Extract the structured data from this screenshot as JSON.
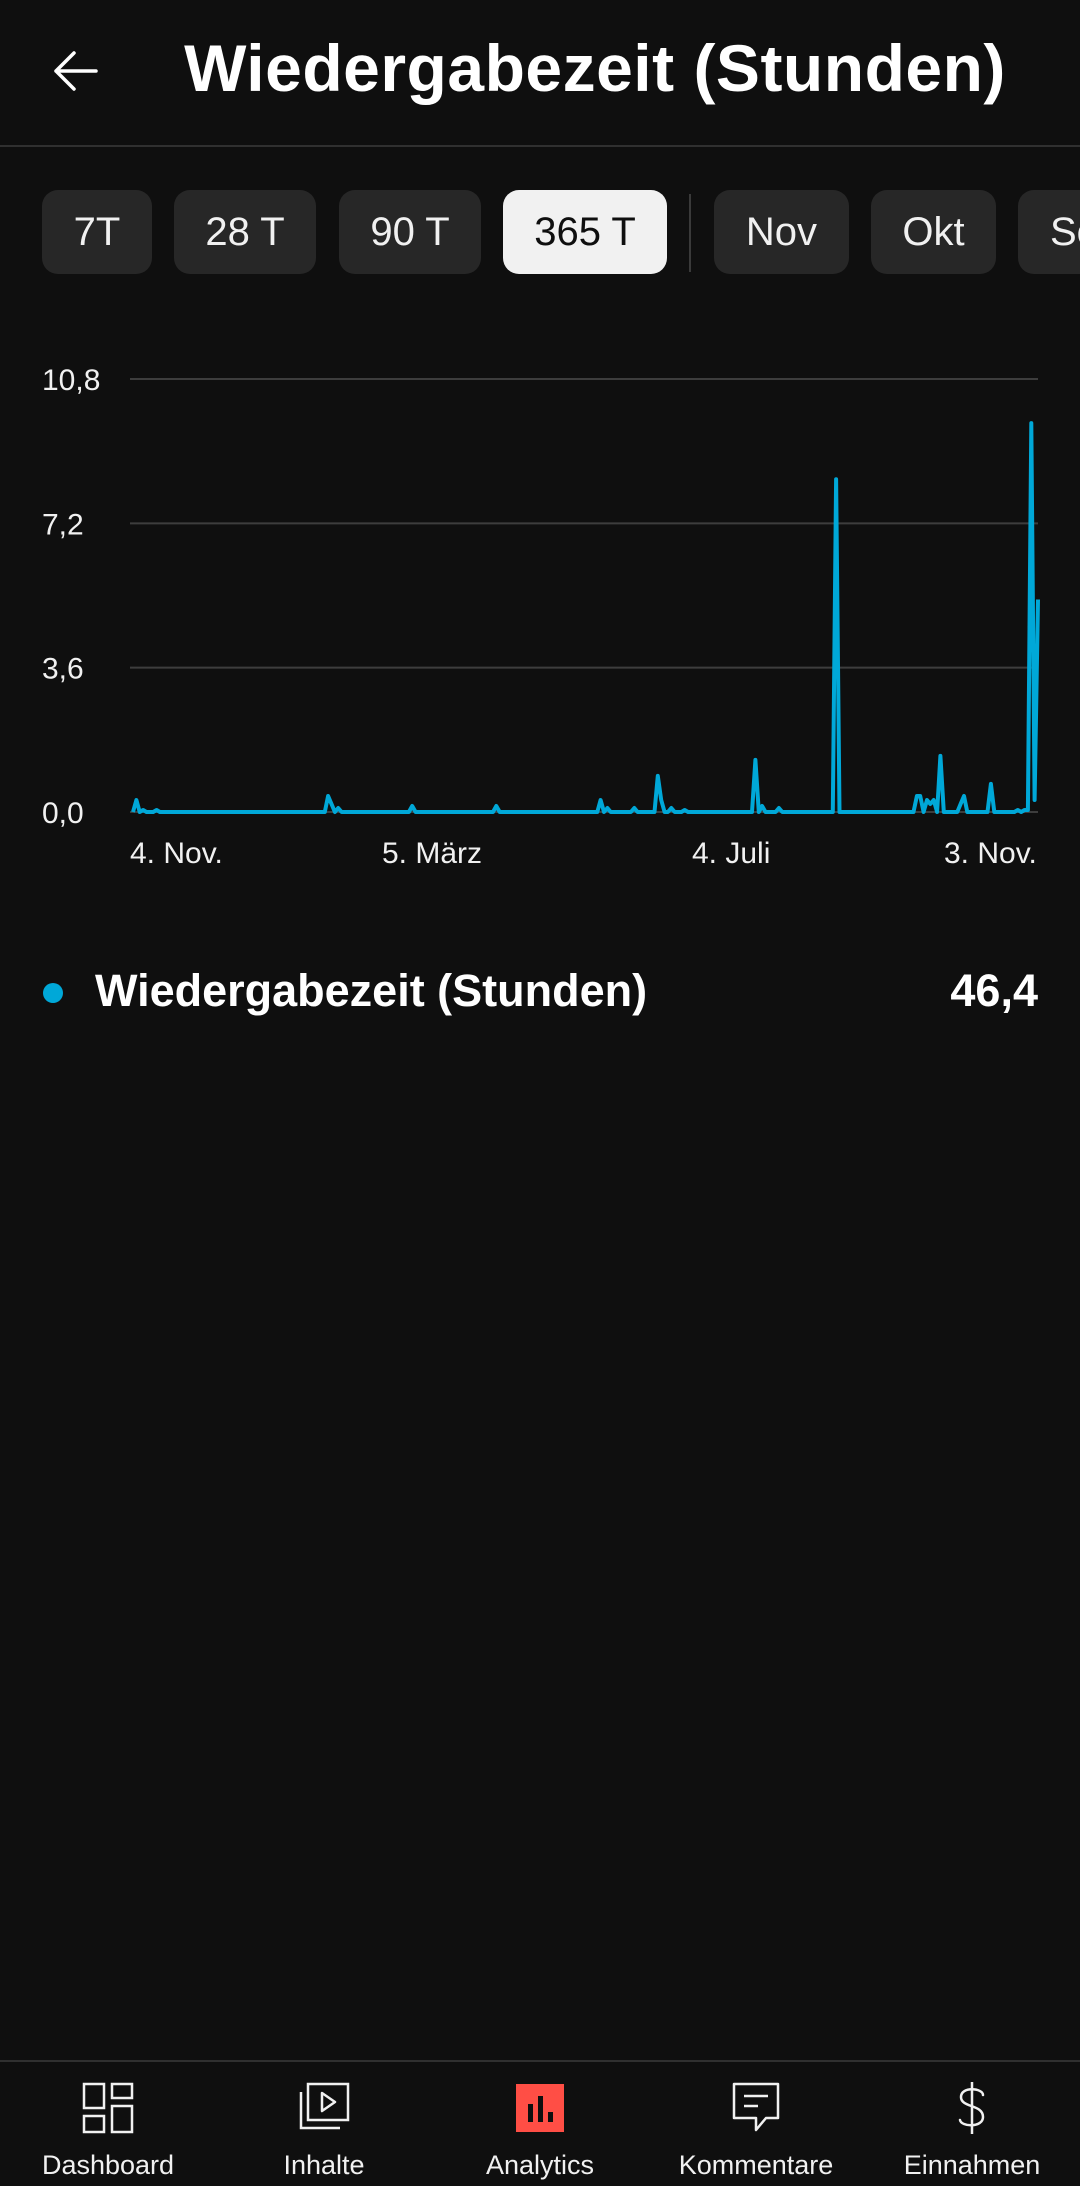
{
  "header": {
    "title": "Wiedergabezeit (Stunden)"
  },
  "chips": [
    "7T",
    "28 T",
    "90 T",
    "365 T",
    "Nov",
    "Okt",
    "Se"
  ],
  "selected_chip": "365 T",
  "colors": {
    "accent": "#00a8d8",
    "nav_active": "#ff4e45"
  },
  "chart_data": {
    "type": "line",
    "y_ticks": [
      "10,8",
      "7,2",
      "3,6",
      "0,0"
    ],
    "x_ticks": [
      "4. Nov.",
      "5. März",
      "4. Juli",
      "3. Nov."
    ],
    "ylim": [
      0,
      10.8
    ],
    "grid": true,
    "series": [
      {
        "name": "Wiedergabezeit (Stunden)",
        "color": "#00a8d8",
        "values": [
          0,
          0.3,
          0,
          0.05,
          0,
          0,
          0,
          0.05,
          0,
          0,
          0,
          0,
          0,
          0,
          0,
          0,
          0,
          0,
          0,
          0,
          0,
          0,
          0,
          0,
          0,
          0,
          0,
          0,
          0,
          0,
          0,
          0,
          0,
          0,
          0,
          0,
          0,
          0,
          0,
          0,
          0,
          0,
          0,
          0,
          0,
          0,
          0,
          0,
          0,
          0,
          0,
          0,
          0,
          0,
          0,
          0,
          0,
          0,
          0.4,
          0.2,
          0,
          0.1,
          0,
          0,
          0,
          0,
          0,
          0,
          0,
          0,
          0,
          0,
          0,
          0,
          0,
          0,
          0,
          0,
          0,
          0,
          0,
          0,
          0,
          0.15,
          0,
          0,
          0,
          0,
          0,
          0,
          0,
          0,
          0,
          0,
          0,
          0,
          0,
          0,
          0,
          0,
          0,
          0,
          0,
          0,
          0,
          0,
          0,
          0,
          0.15,
          0,
          0,
          0,
          0,
          0,
          0,
          0,
          0,
          0,
          0,
          0,
          0,
          0,
          0,
          0,
          0,
          0,
          0,
          0,
          0,
          0,
          0,
          0,
          0,
          0,
          0,
          0,
          0,
          0,
          0,
          0.3,
          0,
          0.1,
          0,
          0,
          0,
          0,
          0,
          0,
          0,
          0.1,
          0,
          0,
          0,
          0,
          0,
          0,
          0.9,
          0.3,
          0,
          0,
          0.1,
          0,
          0,
          0,
          0.05,
          0,
          0,
          0,
          0,
          0,
          0,
          0,
          0,
          0,
          0,
          0,
          0,
          0,
          0,
          0,
          0,
          0,
          0,
          0,
          0,
          1.3,
          0,
          0.15,
          0,
          0,
          0,
          0,
          0.1,
          0,
          0,
          0,
          0,
          0,
          0,
          0,
          0,
          0,
          0,
          0,
          0,
          0,
          0,
          0,
          0,
          8.3,
          0,
          0,
          0,
          0,
          0,
          0,
          0,
          0,
          0,
          0,
          0,
          0,
          0,
          0,
          0,
          0,
          0,
          0,
          0,
          0,
          0,
          0,
          0,
          0.4,
          0.4,
          0,
          0.3,
          0.2,
          0.3,
          0,
          1.4,
          0,
          0,
          0,
          0,
          0,
          0.2,
          0.4,
          0,
          0,
          0,
          0,
          0,
          0,
          0,
          0.7,
          0,
          0,
          0,
          0,
          0,
          0,
          0,
          0.05,
          0,
          0.05,
          0.05,
          9.7,
          0.3,
          5.3
        ]
      }
    ]
  },
  "legend": {
    "name": "Wiedergabezeit (Stunden)",
    "value": "46,4"
  },
  "nav": [
    {
      "label": "Dashboard",
      "icon": "dashboard-icon",
      "active": false
    },
    {
      "label": "Inhalte",
      "icon": "content-icon",
      "active": false
    },
    {
      "label": "Analytics",
      "icon": "analytics-icon",
      "active": true
    },
    {
      "label": "Kommentare",
      "icon": "comments-icon",
      "active": false
    },
    {
      "label": "Einnahmen",
      "icon": "earnings-icon",
      "active": false
    }
  ]
}
